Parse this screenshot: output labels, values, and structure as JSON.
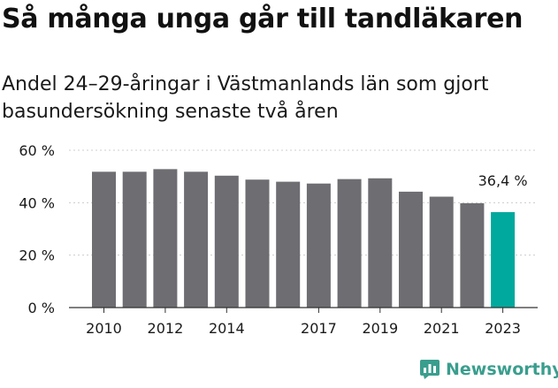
{
  "title": "Så många unga går till tandläkaren",
  "subtitle": "Andel 24–29-åringar i Västmanlands län som gjort basundersökning senaste två åren",
  "brand": {
    "name": "Newsworthy",
    "icon": "newsworthy-chart-icon"
  },
  "colors": {
    "bar": "#6e6d72",
    "highlight": "#00a99d",
    "grid": "#cccccc",
    "axis": "#333333",
    "text": "#1a1a1a",
    "brand": "#3a9e8e"
  },
  "chart_data": {
    "type": "bar",
    "title": "Så många unga går till tandläkaren",
    "subtitle": "Andel 24–29-åringar i Västmanlands län som gjort basundersökning senaste två åren",
    "categories": [
      "2010",
      "2011",
      "2012",
      "2013",
      "2014",
      "2015",
      "2016",
      "2017",
      "2018",
      "2019",
      "2020",
      "2021",
      "2022",
      "2023"
    ],
    "x_tick_labels": [
      "2010",
      "2012",
      "2014",
      "2017",
      "2019",
      "2021",
      "2023"
    ],
    "values": [
      51.8,
      51.8,
      52.8,
      51.8,
      50.3,
      48.8,
      48.0,
      47.3,
      49.0,
      49.3,
      44.2,
      42.3,
      39.8,
      36.4
    ],
    "highlight_index": 13,
    "highlight_label": "36,4 %",
    "ylim": [
      0,
      60
    ],
    "y_ticks": [
      0,
      20,
      40,
      60
    ],
    "y_tick_labels": [
      "0 %",
      "20 %",
      "40 %",
      "60 %"
    ],
    "xlabel": "",
    "ylabel": "",
    "grid": true,
    "legend": "none"
  }
}
